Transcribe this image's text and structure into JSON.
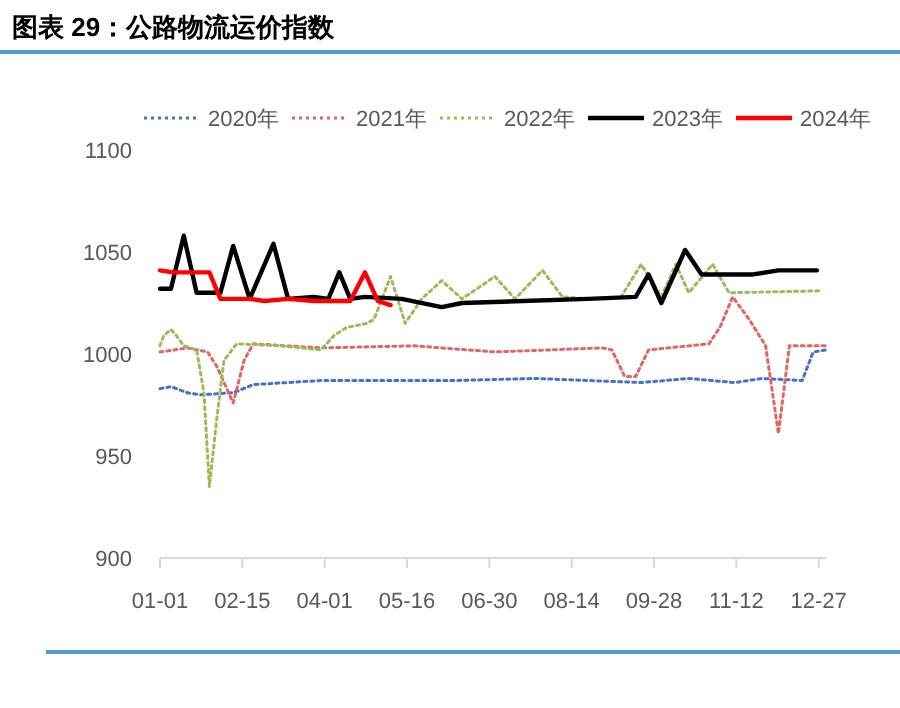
{
  "chart_data": {
    "type": "line",
    "title": "图表 29：公路物流运价指数",
    "xlim": [
      "--01-01",
      "--12-31"
    ],
    "xticks": [
      {
        "value": "--01-01",
        "label": "01-01"
      },
      {
        "value": "--02-15",
        "label": "02-15"
      },
      {
        "value": "--04-01",
        "label": "04-01"
      },
      {
        "value": "--05-16",
        "label": "05-16"
      },
      {
        "value": "--06-30",
        "label": "06-30"
      },
      {
        "value": "--08-14",
        "label": "08-14"
      },
      {
        "value": "--09-28",
        "label": "09-28"
      },
      {
        "value": "--11-12",
        "label": "11-12"
      },
      {
        "value": "--12-27",
        "label": "12-27"
      }
    ],
    "ylim": [
      900,
      1100
    ],
    "yticks": [
      900,
      950,
      1000,
      1050,
      1100
    ],
    "grid": false,
    "legend": "top",
    "marker": "none",
    "series": [
      {
        "name": "2020年",
        "color": "#4472c4",
        "line_style": "dotted",
        "x": [
          "--01-01",
          "--01-07",
          "--01-16",
          "--01-23",
          "--02-10",
          "--02-21",
          "--03-30",
          "--04-24",
          "--06-11",
          "--07-25",
          "--09-21",
          "--10-17",
          "--11-11",
          "--11-26",
          "--12-18",
          "--12-24",
          "--12-31"
        ],
        "values": [
          983,
          984,
          981,
          980,
          981,
          985,
          987,
          987,
          987,
          988,
          986,
          988,
          986,
          988,
          987,
          1001,
          1002
        ]
      },
      {
        "name": "2021年",
        "color": "#e06666",
        "line_style": "dotted",
        "x": [
          "--01-01",
          "--01-16",
          "--01-27",
          "--02-01",
          "--02-10",
          "--02-16",
          "--02-21",
          "--03-30",
          "--05-20",
          "--07-03",
          "--08-31",
          "--09-05",
          "--09-12",
          "--09-18",
          "--09-25",
          "--10-28",
          "--11-03",
          "--11-10",
          "--11-19",
          "--11-28",
          "--12-05",
          "--12-11",
          "--12-31"
        ],
        "values": [
          1001,
          1003,
          1001,
          994,
          976,
          997,
          1005,
          1003,
          1004,
          1001,
          1003,
          1002,
          989,
          989,
          1002,
          1005,
          1013,
          1028,
          1017,
          1004,
          961,
          1004,
          1004
        ]
      },
      {
        "name": "2022年",
        "color": "#9bbb59",
        "line_style": "dotted",
        "x": [
          "--01-01",
          "--01-03",
          "--01-07",
          "--01-10",
          "--01-14",
          "--01-21",
          "--01-25",
          "--01-28",
          "--02-01",
          "--02-05",
          "--02-12",
          "--03-08",
          "--03-30",
          "--04-06",
          "--04-13",
          "--04-24",
          "--04-28",
          "--05-07",
          "--05-15",
          "--05-24",
          "--06-04",
          "--06-15",
          "--07-03",
          "--07-14",
          "--07-29",
          "--08-09",
          "--08-23",
          "--09-10",
          "--09-21",
          "--10-02",
          "--10-10",
          "--10-17",
          "--10-30",
          "--11-08",
          "--12-29"
        ],
        "values": [
          1004,
          1009,
          1012,
          1009,
          1004,
          1002,
          981,
          935,
          968,
          997,
          1005,
          1004,
          1002,
          1009,
          1013,
          1015,
          1017,
          1038,
          1015,
          1027,
          1036,
          1027,
          1038,
          1027,
          1041,
          1028,
          1027,
          1028,
          1044,
          1028,
          1044,
          1030,
          1044,
          1030,
          1031
        ]
      },
      {
        "name": "2023年",
        "color": "#000000",
        "line_style": "solid",
        "x": [
          "--01-01",
          "--01-07",
          "--01-14",
          "--01-21",
          "--02-03",
          "--02-10",
          "--02-19",
          "--03-04",
          "--03-12",
          "--03-26",
          "--04-03",
          "--04-09",
          "--04-15",
          "--04-23",
          "--05-13",
          "--06-04",
          "--06-15",
          "--08-23",
          "--09-18",
          "--09-25",
          "--10-02",
          "--10-15",
          "--10-24",
          "--11-21",
          "--12-05",
          "--12-26"
        ],
        "values": [
          1032,
          1032,
          1058,
          1030,
          1030,
          1053,
          1027,
          1054,
          1027,
          1028,
          1027,
          1040,
          1027,
          1028,
          1027,
          1023,
          1025,
          1027,
          1028,
          1039,
          1025,
          1051,
          1039,
          1039,
          1041,
          1041
        ]
      },
      {
        "name": "2024年",
        "color": "#ff0000",
        "line_style": "solid",
        "x": [
          "--01-01",
          "--01-08",
          "--01-28",
          "--02-03",
          "--02-19",
          "--02-27",
          "--03-12",
          "--03-26",
          "--04-15",
          "--04-23",
          "--04-30",
          "--05-07"
        ],
        "values": [
          1041,
          1040,
          1040,
          1027,
          1027,
          1026,
          1027,
          1026,
          1026,
          1040,
          1026,
          1024
        ]
      }
    ]
  }
}
